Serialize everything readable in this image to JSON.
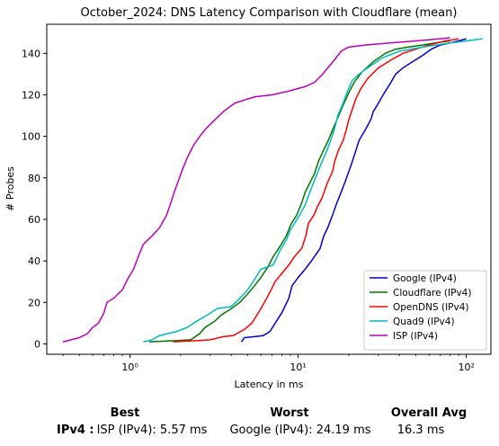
{
  "chart_data": {
    "type": "line",
    "title": "October_2024: DNS Latency Comparison with Cloudflare (mean)",
    "xlabel": "Latency in ms",
    "ylabel": "# Probes",
    "xscale": "log",
    "xlim": [
      0.32,
      140
    ],
    "ylim": [
      -5,
      154
    ],
    "xticks": [
      {
        "value": 1,
        "label": "10⁰"
      },
      {
        "value": 10,
        "label": "10¹"
      },
      {
        "value": 100,
        "label": "10²"
      }
    ],
    "yticks": [
      0,
      20,
      40,
      60,
      80,
      100,
      120,
      140
    ],
    "legend_position": "lower-right",
    "grid": false,
    "series": [
      {
        "name": "Google (IPv4)",
        "color": "#0000cc",
        "points": [
          [
            4.6,
            1
          ],
          [
            4.8,
            3
          ],
          [
            5.5,
            3.5
          ],
          [
            6.2,
            4
          ],
          [
            6.8,
            6
          ],
          [
            7.3,
            10
          ],
          [
            8,
            15
          ],
          [
            8.8,
            22
          ],
          [
            9.2,
            28
          ],
          [
            10,
            32
          ],
          [
            11,
            36
          ],
          [
            12,
            40
          ],
          [
            13.5,
            46
          ],
          [
            14.2,
            52
          ],
          [
            15,
            56
          ],
          [
            16,
            62
          ],
          [
            17,
            68
          ],
          [
            18,
            73
          ],
          [
            19,
            78
          ],
          [
            20,
            83
          ],
          [
            21,
            88
          ],
          [
            22,
            93
          ],
          [
            23,
            98
          ],
          [
            25,
            103
          ],
          [
            27,
            108
          ],
          [
            28,
            112
          ],
          [
            30,
            116
          ],
          [
            32,
            120
          ],
          [
            35,
            125
          ],
          [
            38,
            130
          ],
          [
            42,
            133
          ],
          [
            48,
            136
          ],
          [
            55,
            139
          ],
          [
            62,
            142
          ],
          [
            70,
            144
          ],
          [
            80,
            145
          ],
          [
            90,
            146
          ],
          [
            100,
            147
          ]
        ]
      },
      {
        "name": "Cloudflare (IPv4)",
        "color": "#007700",
        "points": [
          [
            1.3,
            1
          ],
          [
            1.8,
            1.5
          ],
          [
            2.3,
            2
          ],
          [
            2.6,
            5
          ],
          [
            2.8,
            8
          ],
          [
            3.2,
            11
          ],
          [
            3.5,
            14
          ],
          [
            4,
            17
          ],
          [
            4.5,
            20
          ],
          [
            5,
            24
          ],
          [
            5.5,
            28
          ],
          [
            6,
            32
          ],
          [
            6.6,
            37
          ],
          [
            7.1,
            42
          ],
          [
            7.8,
            47
          ],
          [
            8.5,
            52
          ],
          [
            9.1,
            58
          ],
          [
            9.8,
            62
          ],
          [
            10.5,
            68
          ],
          [
            11,
            73
          ],
          [
            11.8,
            78
          ],
          [
            12.5,
            82
          ],
          [
            13.2,
            88
          ],
          [
            14.1,
            93
          ],
          [
            15.1,
            98
          ],
          [
            16,
            103
          ],
          [
            17.2,
            109
          ],
          [
            18.5,
            115
          ],
          [
            20,
            121
          ],
          [
            21.5,
            126
          ],
          [
            24,
            131
          ],
          [
            28,
            136
          ],
          [
            33,
            140
          ],
          [
            38,
            142
          ],
          [
            45,
            143
          ],
          [
            55,
            144
          ],
          [
            65,
            145
          ],
          [
            80,
            146
          ]
        ]
      },
      {
        "name": "OpenDNS (IPv4)",
        "color": "#ff0000",
        "points": [
          [
            1.8,
            1
          ],
          [
            2.4,
            1.5
          ],
          [
            3,
            2
          ],
          [
            3.6,
            3.5
          ],
          [
            4.1,
            4
          ],
          [
            4.8,
            7
          ],
          [
            5.3,
            10
          ],
          [
            5.7,
            14
          ],
          [
            6.1,
            18
          ],
          [
            6.5,
            22
          ],
          [
            6.9,
            26
          ],
          [
            7.3,
            30
          ],
          [
            8,
            34
          ],
          [
            8.8,
            38
          ],
          [
            9.5,
            42
          ],
          [
            10.5,
            46
          ],
          [
            11.1,
            52
          ],
          [
            11.5,
            58
          ],
          [
            12.4,
            62
          ],
          [
            13,
            66
          ],
          [
            13.8,
            70
          ],
          [
            14.4,
            74
          ],
          [
            15,
            78
          ],
          [
            16,
            83
          ],
          [
            16.5,
            88
          ],
          [
            17.3,
            93
          ],
          [
            18.5,
            98
          ],
          [
            19.3,
            103
          ],
          [
            20,
            108
          ],
          [
            21,
            113
          ],
          [
            22,
            118
          ],
          [
            23.6,
            123
          ],
          [
            26,
            128
          ],
          [
            30,
            133
          ],
          [
            36,
            137
          ],
          [
            42,
            140
          ],
          [
            50,
            142
          ],
          [
            60,
            144
          ],
          [
            75,
            146
          ],
          [
            90,
            147
          ]
        ]
      },
      {
        "name": "Quad9 (IPv4)",
        "color": "#00bbbb",
        "points": [
          [
            1.2,
            1
          ],
          [
            1.35,
            2
          ],
          [
            1.5,
            4
          ],
          [
            1.9,
            6
          ],
          [
            2.2,
            8
          ],
          [
            2.5,
            11
          ],
          [
            2.9,
            14
          ],
          [
            3.3,
            17
          ],
          [
            4,
            18
          ],
          [
            4.5,
            22
          ],
          [
            5,
            26
          ],
          [
            5.6,
            32
          ],
          [
            6,
            36
          ],
          [
            7.1,
            38
          ],
          [
            7.8,
            45
          ],
          [
            8.5,
            50
          ],
          [
            9,
            55
          ],
          [
            9.5,
            58
          ],
          [
            10.2,
            62
          ],
          [
            11,
            67
          ],
          [
            11.6,
            72
          ],
          [
            12.4,
            78
          ],
          [
            13.1,
            83
          ],
          [
            13.9,
            88
          ],
          [
            14.8,
            93
          ],
          [
            15.6,
            98
          ],
          [
            16.5,
            104
          ],
          [
            17.2,
            110
          ],
          [
            18.5,
            116
          ],
          [
            19.7,
            122
          ],
          [
            21,
            127
          ],
          [
            23,
            130
          ],
          [
            27,
            134
          ],
          [
            32,
            138
          ],
          [
            40,
            141
          ],
          [
            55,
            143
          ],
          [
            80,
            145
          ],
          [
            100,
            146
          ],
          [
            125,
            147
          ]
        ]
      },
      {
        "name": "ISP (IPv4)",
        "color": "#bb00bb",
        "points": [
          [
            0.4,
            1
          ],
          [
            0.5,
            3
          ],
          [
            0.56,
            5
          ],
          [
            0.6,
            8
          ],
          [
            0.65,
            10
          ],
          [
            0.7,
            15
          ],
          [
            0.73,
            20
          ],
          [
            0.8,
            22
          ],
          [
            0.9,
            26
          ],
          [
            0.98,
            32
          ],
          [
            1.05,
            36
          ],
          [
            1.12,
            42
          ],
          [
            1.2,
            48
          ],
          [
            1.35,
            52
          ],
          [
            1.5,
            56
          ],
          [
            1.65,
            62
          ],
          [
            1.75,
            68
          ],
          [
            1.85,
            74
          ],
          [
            1.95,
            79
          ],
          [
            2.05,
            84
          ],
          [
            2.2,
            90
          ],
          [
            2.4,
            96
          ],
          [
            2.6,
            100
          ],
          [
            2.85,
            104
          ],
          [
            3.2,
            108
          ],
          [
            3.6,
            112
          ],
          [
            4.2,
            116
          ],
          [
            5.5,
            119
          ],
          [
            7,
            120
          ],
          [
            9,
            122
          ],
          [
            11,
            124
          ],
          [
            12.5,
            126
          ],
          [
            14,
            130
          ],
          [
            15,
            133
          ],
          [
            16.5,
            137
          ],
          [
            18,
            141
          ],
          [
            20,
            143
          ],
          [
            25,
            144
          ],
          [
            35,
            145
          ],
          [
            50,
            146
          ],
          [
            70,
            147
          ],
          [
            80,
            147.5
          ]
        ]
      }
    ]
  },
  "summary": {
    "best_header": "Best",
    "worst_header": "Worst",
    "avg_header": "Overall Avg",
    "row_label": "IPv4 :",
    "best_value": "ISP (IPv4): 5.57 ms",
    "worst_value": "Google (IPv4): 24.19 ms",
    "avg_value": "16.3 ms"
  }
}
